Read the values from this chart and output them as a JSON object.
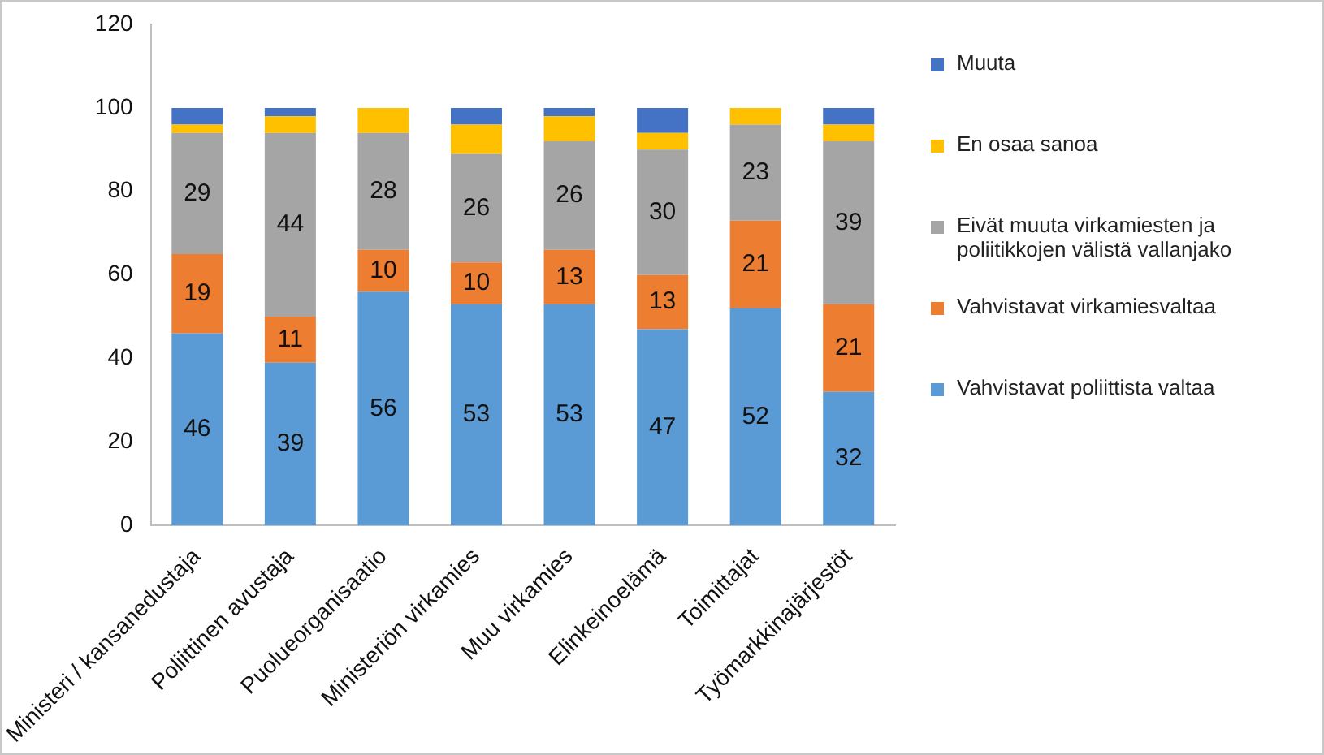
{
  "chart_data": {
    "type": "bar",
    "stacked": true,
    "categories": [
      "Ministeri / kansanedustaja",
      "Poliittinen avustaja",
      "Puolueorganisaatio",
      "Ministeriön virkamies",
      "Muu virkamies",
      "Elinkeinoelämä",
      "Toimittajat",
      "Työmarkkinajärjestöt"
    ],
    "ylim": [
      0,
      120
    ],
    "yticks": [
      0,
      20,
      40,
      60,
      80,
      100,
      120
    ],
    "grid": false,
    "legend": "right",
    "series": [
      {
        "name": "Vahvistavat poliittista valtaa",
        "color": "#5b9bd5",
        "values": [
          46,
          39,
          56,
          53,
          53,
          47,
          52,
          32
        ],
        "value_labels": [
          "46",
          "39",
          "56",
          "53",
          "53",
          "47",
          "52",
          "32"
        ]
      },
      {
        "name": "Vahvistavat virkamiesvaltaa",
        "color": "#ed7d31",
        "values": [
          19,
          11,
          10,
          10,
          13,
          13,
          21,
          21
        ],
        "value_labels": [
          "19",
          "11",
          "10",
          "10",
          "13",
          "13",
          "21",
          "21"
        ]
      },
      {
        "name": "Eivät muuta virkamiesten ja poliitikkojen välistä vallanjako",
        "color": "#a5a5a5",
        "values": [
          29,
          44,
          28,
          26,
          26,
          30,
          23,
          39
        ],
        "value_labels": [
          "29",
          "44",
          "28",
          "26",
          "26",
          "30",
          "23",
          "39"
        ]
      },
      {
        "name": "En osaa sanoa",
        "color": "#ffc000",
        "values": [
          2,
          4,
          6,
          7,
          6,
          4,
          4,
          4
        ]
      },
      {
        "name": "Muuta",
        "color": "#4472c4",
        "values": [
          4,
          2,
          0,
          4,
          2,
          6,
          0,
          4
        ]
      }
    ]
  }
}
